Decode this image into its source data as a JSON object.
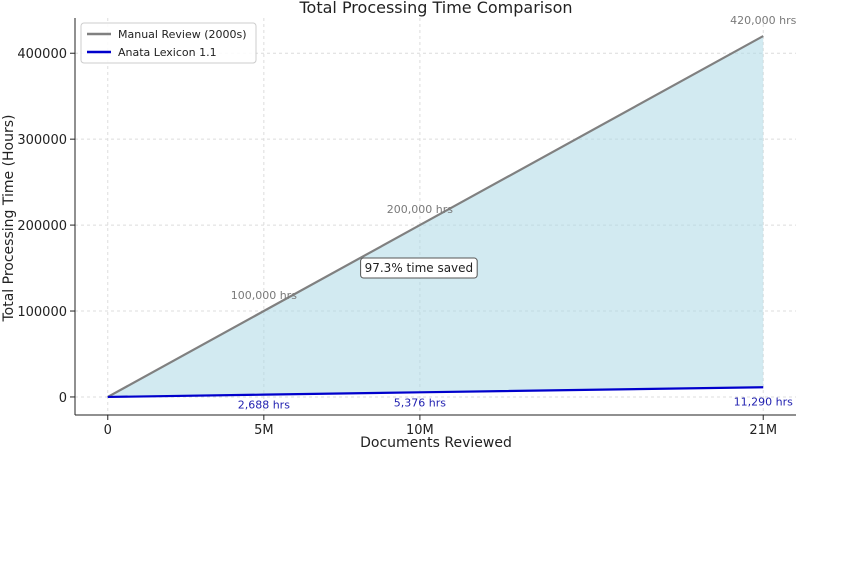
{
  "chart_data": {
    "type": "line",
    "title": "Total Processing Time Comparison",
    "xlabel": "Documents Reviewed",
    "ylabel": "Total Processing Time (Hours)",
    "xlim": [
      -1050000,
      22050000
    ],
    "ylim": [
      -21000,
      441000
    ],
    "x_ticks": [
      {
        "value": 0,
        "label": "0"
      },
      {
        "value": 5000000,
        "label": "5M"
      },
      {
        "value": 10000000,
        "label": "10M"
      },
      {
        "value": 21000000,
        "label": "21M"
      }
    ],
    "y_ticks": [
      {
        "value": 0,
        "label": "0"
      },
      {
        "value": 100000,
        "label": "100000"
      },
      {
        "value": 200000,
        "label": "200000"
      },
      {
        "value": 300000,
        "label": "300000"
      },
      {
        "value": 400000,
        "label": "400000"
      }
    ],
    "grid": true,
    "legend_position": "top-left",
    "fill_between": {
      "color": "#add8e6",
      "opacity": 0.55
    },
    "series": [
      {
        "name": "Manual Review (2000s)",
        "color": "#808080",
        "x": [
          0,
          5000000,
          10000000,
          21000000
        ],
        "y": [
          0,
          100000,
          200000,
          420000
        ]
      },
      {
        "name": "Anata Lexicon 1.1",
        "color": "#0000cc",
        "x": [
          0,
          5000000,
          10000000,
          21000000
        ],
        "y": [
          0,
          2688,
          5376,
          11290
        ]
      }
    ],
    "annotations": [
      {
        "text": "100,000 hrs",
        "x": 5000000,
        "y": 100000,
        "color": "#7a7a7a",
        "dy": -12
      },
      {
        "text": "200,000 hrs",
        "x": 10000000,
        "y": 200000,
        "color": "#7a7a7a",
        "dy": -12
      },
      {
        "text": "420,000 hrs",
        "x": 21000000,
        "y": 420000,
        "color": "#7a7a7a",
        "dy": -12
      },
      {
        "text": "2,688 hrs",
        "x": 5000000,
        "y": 2688,
        "color": "#1f1fb0",
        "dy": 14
      },
      {
        "text": "5,376 hrs",
        "x": 10000000,
        "y": 5376,
        "color": "#1f1fb0",
        "dy": 14
      },
      {
        "text": "11,290 hrs",
        "x": 21000000,
        "y": 11290,
        "color": "#1f1fb0",
        "dy": 18
      }
    ],
    "callout": {
      "text": "97.3% time saved",
      "x": 10000000,
      "y": 150000
    }
  }
}
